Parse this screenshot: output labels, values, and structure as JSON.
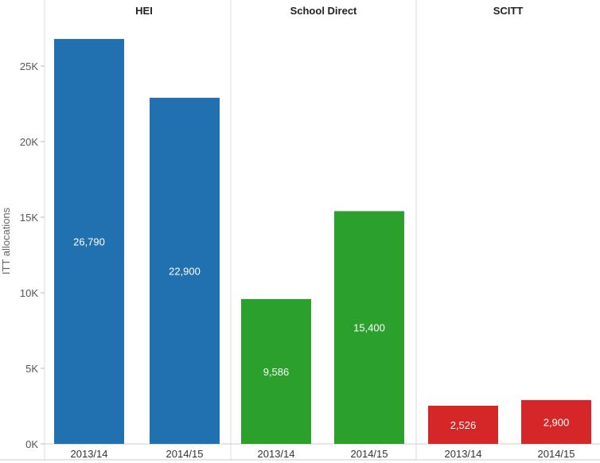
{
  "chart_data": {
    "type": "bar",
    "ylabel": "ITT allocations",
    "ylim": [
      0,
      28000
    ],
    "yticks": [
      {
        "value": 0,
        "label": "0K"
      },
      {
        "value": 5000,
        "label": "5K"
      },
      {
        "value": 10000,
        "label": "10K"
      },
      {
        "value": 15000,
        "label": "15K"
      },
      {
        "value": 20000,
        "label": "20K"
      },
      {
        "value": 25000,
        "label": "25K"
      }
    ],
    "grid": false,
    "panels": [
      {
        "name": "HEI",
        "color": "#2170b0",
        "bars": [
          {
            "category": "2013/14",
            "value": 26790,
            "label": "26,790"
          },
          {
            "category": "2014/15",
            "value": 22900,
            "label": "22,900"
          }
        ]
      },
      {
        "name": "School Direct",
        "color": "#2ca02c",
        "bars": [
          {
            "category": "2013/14",
            "value": 9586,
            "label": "9,586"
          },
          {
            "category": "2014/15",
            "value": 15400,
            "label": "15,400"
          }
        ]
      },
      {
        "name": "SCITT",
        "color": "#d62728",
        "bars": [
          {
            "category": "2013/14",
            "value": 2526,
            "label": "2,526"
          },
          {
            "category": "2014/15",
            "value": 2900,
            "label": "2,900"
          }
        ]
      }
    ]
  }
}
